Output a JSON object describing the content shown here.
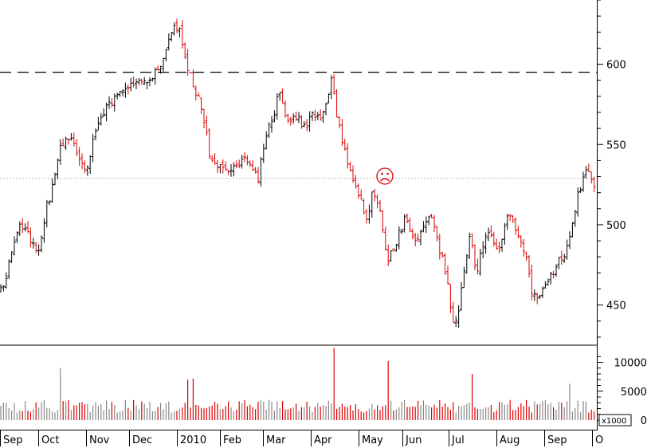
{
  "chart_data": {
    "type": "ohlc",
    "price_axis": {
      "ylim": [
        425,
        640
      ],
      "ticks": [
        450,
        500,
        550,
        600
      ]
    },
    "volume_axis": {
      "ylim": [
        0,
        12000
      ],
      "ticks": [
        0,
        5000,
        10000
      ],
      "unit_label": "x1000"
    },
    "x_labels": [
      "Sep",
      "Oct",
      "Nov",
      "Dec",
      "2010",
      "Feb",
      "Mar",
      "Apr",
      "May",
      "Jun",
      "Jul",
      "Aug",
      "Sep",
      "O"
    ],
    "resistance_level": 595,
    "reference_level": 529,
    "annotation": "☹",
    "colors": {
      "up": "#000000",
      "down": "#dd0000",
      "volume_neutral": "#888888",
      "reference_line": "#bbbbbb"
    },
    "price_path": [
      [
        0,
        458
      ],
      [
        10,
        472
      ],
      [
        20,
        490
      ],
      [
        26,
        500
      ],
      [
        36,
        492
      ],
      [
        48,
        485
      ],
      [
        58,
        510
      ],
      [
        68,
        528
      ],
      [
        78,
        552
      ],
      [
        92,
        553
      ],
      [
        102,
        540
      ],
      [
        110,
        533
      ],
      [
        118,
        558
      ],
      [
        130,
        570
      ],
      [
        145,
        580
      ],
      [
        160,
        585
      ],
      [
        175,
        589
      ],
      [
        190,
        592
      ],
      [
        200,
        596
      ],
      [
        210,
        612
      ],
      [
        218,
        622
      ],
      [
        226,
        621
      ],
      [
        234,
        600
      ],
      [
        242,
        588
      ],
      [
        250,
        578
      ],
      [
        258,
        560
      ],
      [
        264,
        540
      ],
      [
        270,
        537
      ],
      [
        278,
        535
      ],
      [
        290,
        535
      ],
      [
        302,
        538
      ],
      [
        312,
        541
      ],
      [
        324,
        530
      ],
      [
        334,
        555
      ],
      [
        344,
        570
      ],
      [
        352,
        585
      ],
      [
        360,
        565
      ],
      [
        370,
        570
      ],
      [
        380,
        560
      ],
      [
        392,
        568
      ],
      [
        402,
        568
      ],
      [
        410,
        575
      ],
      [
        416,
        595
      ],
      [
        422,
        570
      ],
      [
        432,
        548
      ],
      [
        442,
        528
      ],
      [
        452,
        516
      ],
      [
        460,
        505
      ],
      [
        468,
        520
      ],
      [
        476,
        512
      ],
      [
        486,
        478
      ],
      [
        492,
        482
      ],
      [
        500,
        493
      ],
      [
        510,
        505
      ],
      [
        522,
        489
      ],
      [
        532,
        500
      ],
      [
        542,
        505
      ],
      [
        550,
        488
      ],
      [
        560,
        468
      ],
      [
        568,
        438
      ],
      [
        574,
        442
      ],
      [
        580,
        465
      ],
      [
        590,
        495
      ],
      [
        598,
        468
      ],
      [
        606,
        488
      ],
      [
        616,
        495
      ],
      [
        626,
        483
      ],
      [
        636,
        508
      ],
      [
        644,
        500
      ],
      [
        652,
        493
      ],
      [
        660,
        480
      ],
      [
        668,
        455
      ],
      [
        676,
        453
      ],
      [
        684,
        460
      ],
      [
        692,
        468
      ],
      [
        700,
        479
      ],
      [
        710,
        482
      ],
      [
        718,
        497
      ],
      [
        724,
        518
      ],
      [
        732,
        527
      ],
      [
        737,
        534
      ],
      [
        744,
        526
      ]
    ],
    "volume_spikes": [
      [
        76,
        9000
      ],
      [
        420,
        12500
      ],
      [
        488,
        10200
      ],
      [
        594,
        8000
      ],
      [
        716,
        6300
      ],
      [
        234,
        7000
      ],
      [
        242,
        7200
      ]
    ]
  }
}
